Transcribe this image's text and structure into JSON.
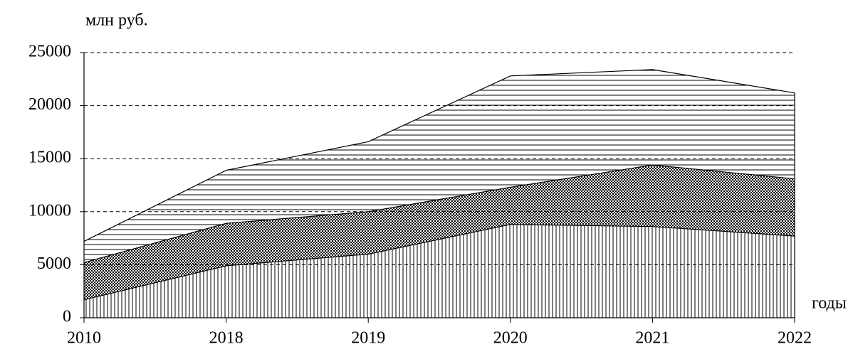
{
  "chart_data": {
    "type": "stacked_area",
    "ylabel": "млн руб.",
    "xlabel": "годы",
    "categories": [
      "2010",
      "2018",
      "2019",
      "2020",
      "2021",
      "2022"
    ],
    "series": [
      {
        "color": "#000000",
        "pattern": "vertical",
        "values": [
          1700,
          4900,
          6000,
          8800,
          8600,
          7700
        ]
      },
      {
        "color": "#000000",
        "pattern": "checker",
        "values": [
          3500,
          4000,
          4000,
          3500,
          5800,
          5400
        ]
      },
      {
        "color": "#000000",
        "pattern": "horizontal",
        "values": [
          2000,
          5000,
          6600,
          10500,
          9000,
          8100
        ]
      }
    ],
    "ylim": [
      0,
      25000
    ],
    "yticks": [
      0,
      5000,
      10000,
      15000,
      20000,
      25000
    ],
    "grid": true
  }
}
